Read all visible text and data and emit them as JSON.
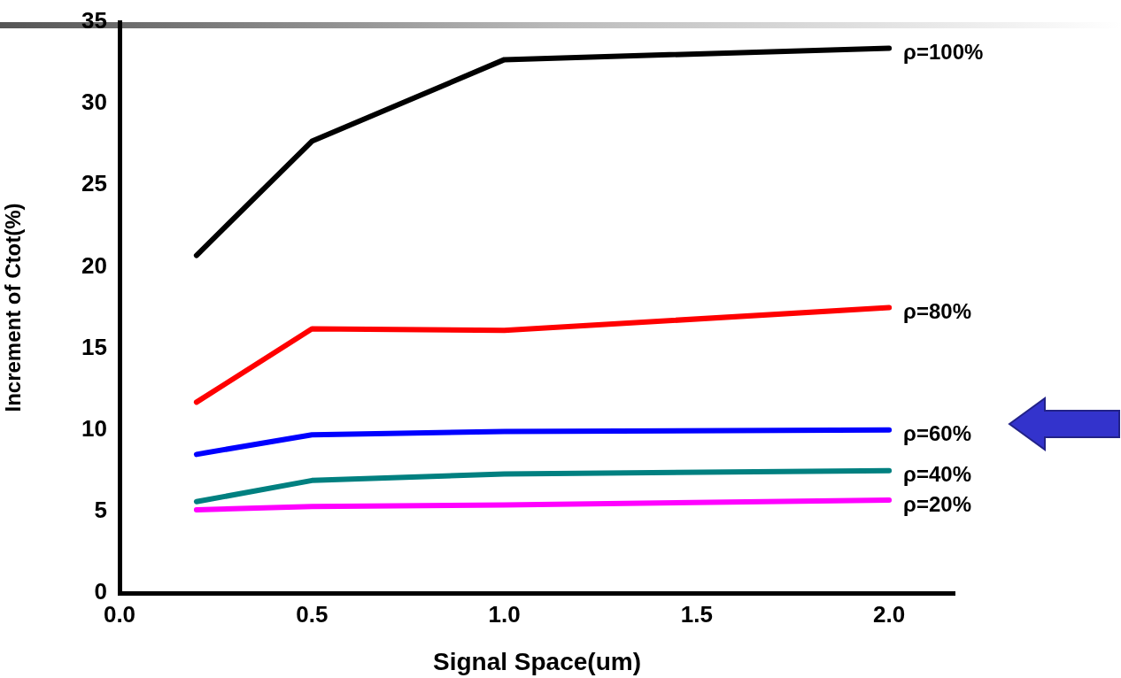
{
  "chart_data": {
    "type": "line",
    "xlabel": "Signal Space(um)",
    "ylabel": "Increment of Ctot(%)",
    "x": [
      0.2,
      0.5,
      1.0,
      2.0
    ],
    "series": [
      {
        "name": "ρ=100%",
        "color": "#000000",
        "values": [
          20.7,
          27.7,
          32.7,
          33.4
        ]
      },
      {
        "name": "ρ=80%",
        "color": "#ff0000",
        "values": [
          11.7,
          16.2,
          16.1,
          17.5
        ]
      },
      {
        "name": "ρ=60%",
        "color": "#0000ff",
        "values": [
          8.5,
          9.7,
          9.9,
          10.0
        ]
      },
      {
        "name": "ρ=40%",
        "color": "#008080",
        "values": [
          5.6,
          6.9,
          7.3,
          7.5
        ]
      },
      {
        "name": "ρ=20%",
        "color": "#ff00ff",
        "values": [
          5.1,
          5.3,
          5.4,
          5.7
        ]
      }
    ],
    "xlim": [
      0,
      2.17
    ],
    "xticks": [
      {
        "value": 0,
        "label": "0.0"
      },
      0.5,
      {
        "value": 1,
        "label": "1.0"
      },
      1.5,
      {
        "value": 2,
        "label": "2.0"
      }
    ],
    "ylim": [
      0,
      35
    ],
    "yticks": [
      0,
      5,
      10,
      15,
      20,
      25,
      30,
      35
    ],
    "grid": false,
    "legend": false,
    "marker": "none",
    "line_style": "solid"
  }
}
